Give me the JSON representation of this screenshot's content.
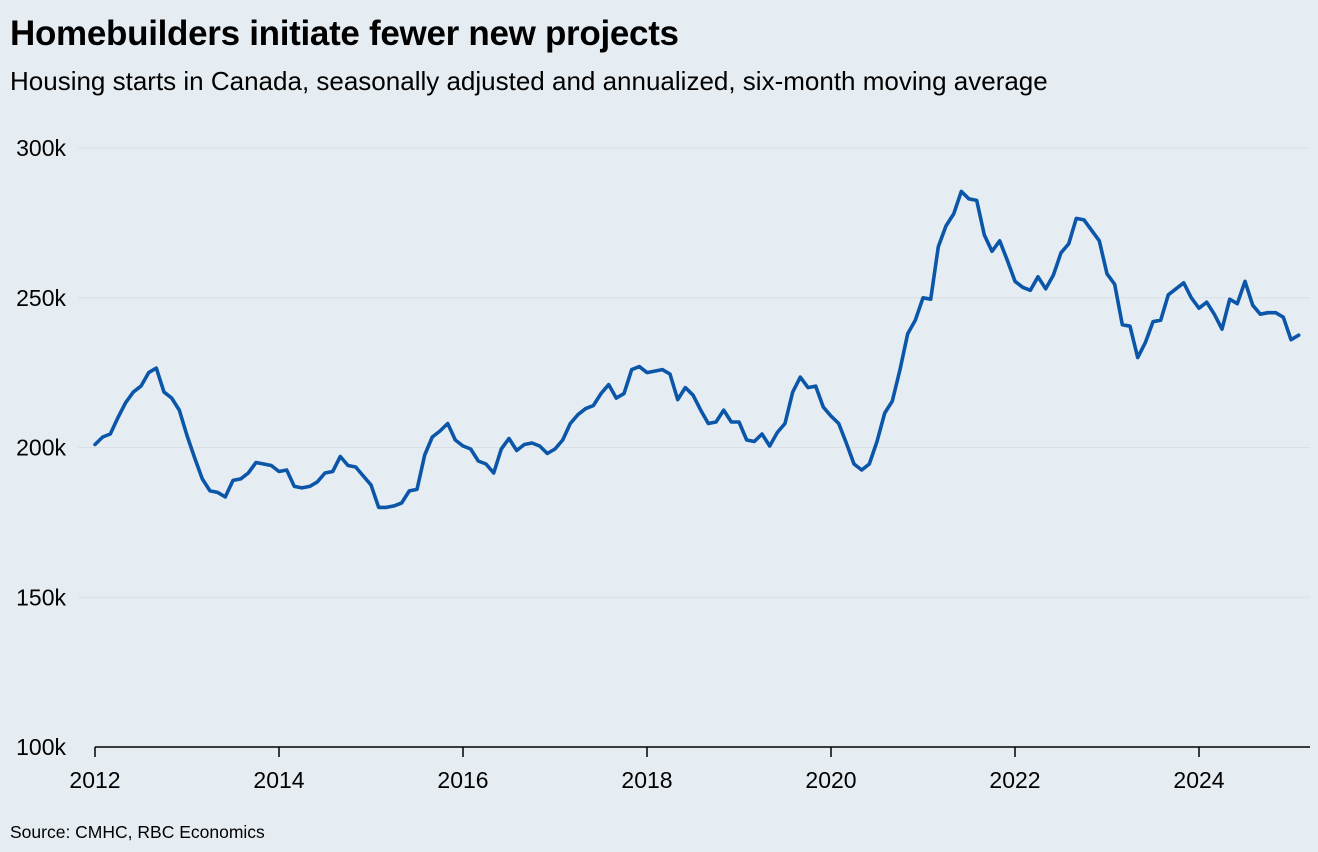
{
  "chart_data": {
    "type": "line",
    "title": "Homebuilders initiate fewer new projects",
    "subtitle": "Housing starts in Canada, seasonally adjusted and annualized, six-month moving average",
    "source": "Source: CMHC, RBC Economics",
    "xlabel": "",
    "ylabel": "",
    "xlim": [
      2012.0,
      2025.25
    ],
    "ylim": [
      100000,
      300000
    ],
    "x_ticks": [
      2012,
      2014,
      2016,
      2018,
      2020,
      2022,
      2024
    ],
    "x_tick_labels": [
      "2012",
      "2014",
      "2016",
      "2018",
      "2020",
      "2022",
      "2024"
    ],
    "y_ticks": [
      100000,
      150000,
      200000,
      250000,
      300000
    ],
    "y_tick_labels": [
      "100k",
      "150k",
      "200k",
      "250k",
      "300k"
    ],
    "grid": true,
    "legend": "none",
    "line_color": "#0b56a8",
    "series": [
      {
        "x_start": 2012.0,
        "x_step_months": 1,
        "values": [
          201000,
          203500,
          204500,
          210000,
          215000,
          218500,
          220500,
          225000,
          226500,
          218500,
          216500,
          212500,
          204000,
          196500,
          189500,
          185500,
          185000,
          183500,
          189000,
          189500,
          191500,
          195000,
          194500,
          194000,
          192000,
          192500,
          187000,
          186500,
          187000,
          188500,
          191500,
          192000,
          197000,
          194000,
          193500,
          190500,
          187500,
          180000,
          180000,
          180500,
          181500,
          185500,
          186000,
          197500,
          203500,
          205500,
          208000,
          202500,
          200500,
          199500,
          195500,
          194500,
          191500,
          199500,
          203000,
          199000,
          201000,
          201500,
          200500,
          198000,
          199500,
          202500,
          208000,
          211000,
          213000,
          214000,
          218000,
          221000,
          216500,
          218000,
          226000,
          227000,
          225000,
          225500,
          226000,
          224500,
          216000,
          220000,
          217500,
          212500,
          208000,
          208500,
          212500,
          208500,
          208500,
          202500,
          202000,
          204500,
          200500,
          205000,
          208000,
          218500,
          223500,
          220000,
          220500,
          213500,
          210500,
          208000,
          201500,
          194500,
          192500,
          194500,
          202000,
          211500,
          215500,
          226000,
          238000,
          242500,
          250000,
          249500,
          267000,
          274000,
          278000,
          285500,
          283000,
          282500,
          271000,
          265500,
          269000,
          262500,
          255500,
          253500,
          252500,
          257000,
          253000,
          257500,
          265000,
          268000,
          276500,
          276000,
          272500,
          269000,
          258000,
          254500,
          241000,
          240500,
          230000,
          235000,
          242000,
          242500,
          251000,
          253000,
          255000,
          250000,
          246500,
          248500,
          244500,
          239500,
          249500,
          248000,
          255500,
          247500,
          244500,
          245000,
          245000,
          243500,
          236000,
          237500
        ]
      }
    ]
  }
}
